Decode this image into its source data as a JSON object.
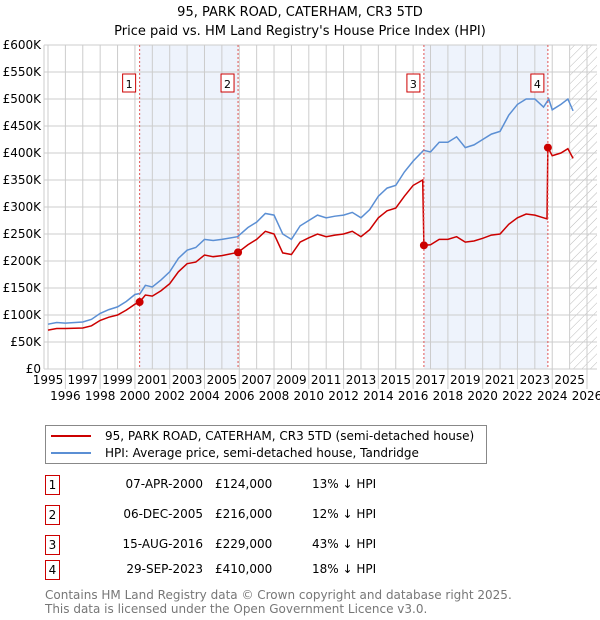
{
  "chart_data": {
    "type": "line",
    "title": "95, PARK ROAD, CATERHAM, CR3 5TD",
    "subtitle": "Price paid vs. HM Land Registry's House Price Index (HPI)",
    "xlim": [
      1995,
      2026
    ],
    "ylim": [
      0,
      600000
    ],
    "ytick_labels": [
      "£0",
      "£50K",
      "£100K",
      "£150K",
      "£200K",
      "£250K",
      "£300K",
      "£350K",
      "£400K",
      "£450K",
      "£500K",
      "£550K",
      "£600K"
    ],
    "xtick_labels": [
      "1995",
      "1996",
      "1997",
      "1998",
      "1999",
      "2000",
      "2001",
      "2002",
      "2003",
      "2004",
      "2005",
      "2006",
      "2007",
      "2008",
      "2009",
      "2010",
      "2011",
      "2012",
      "2013",
      "2014",
      "2015",
      "2016",
      "2017",
      "2018",
      "2019",
      "2020",
      "2021",
      "2022",
      "2023",
      "2024",
      "2025",
      "2026"
    ],
    "grid": true,
    "forecast_hatch_from": 2025.0,
    "series": [
      {
        "name": "95, PARK ROAD, CATERHAM, CR3 5TD (semi-detached house)",
        "color": "#cc0000",
        "points": [
          [
            1995,
            72
          ],
          [
            1995.5,
            75
          ],
          [
            1996,
            75
          ],
          [
            1997,
            76
          ],
          [
            1997.5,
            80
          ],
          [
            1998,
            90
          ],
          [
            1998.5,
            96
          ],
          [
            1999,
            100
          ],
          [
            1999.5,
            109
          ],
          [
            2000,
            120
          ],
          [
            2000.27,
            124
          ],
          [
            2000.6,
            137
          ],
          [
            2001,
            135
          ],
          [
            2001.5,
            145
          ],
          [
            2002,
            158
          ],
          [
            2002.5,
            180
          ],
          [
            2003,
            195
          ],
          [
            2003.5,
            198
          ],
          [
            2004,
            211
          ],
          [
            2004.5,
            208
          ],
          [
            2005,
            210
          ],
          [
            2005.93,
            216
          ],
          [
            2006.5,
            230
          ],
          [
            2007,
            240
          ],
          [
            2007.5,
            255
          ],
          [
            2008,
            250
          ],
          [
            2008.5,
            215
          ],
          [
            2009,
            212
          ],
          [
            2009.5,
            235
          ],
          [
            2010,
            243
          ],
          [
            2010.5,
            250
          ],
          [
            2011,
            245
          ],
          [
            2011.5,
            248
          ],
          [
            2012,
            250
          ],
          [
            2012.5,
            255
          ],
          [
            2013,
            245
          ],
          [
            2013.5,
            258
          ],
          [
            2014,
            280
          ],
          [
            2014.5,
            293
          ],
          [
            2015,
            298
          ],
          [
            2015.5,
            320
          ],
          [
            2016,
            340
          ],
          [
            2016.55,
            350
          ],
          [
            2016.62,
            229
          ],
          [
            2017,
            230
          ],
          [
            2017.5,
            240
          ],
          [
            2018,
            240
          ],
          [
            2018.5,
            245
          ],
          [
            2019,
            235
          ],
          [
            2019.5,
            237
          ],
          [
            2020,
            242
          ],
          [
            2020.5,
            248
          ],
          [
            2021,
            250
          ],
          [
            2021.5,
            268
          ],
          [
            2022,
            280
          ],
          [
            2022.5,
            287
          ],
          [
            2023,
            285
          ],
          [
            2023.5,
            280
          ],
          [
            2023.7,
            278
          ],
          [
            2023.75,
            410
          ],
          [
            2024,
            395
          ],
          [
            2024.5,
            400
          ],
          [
            2024.9,
            408
          ],
          [
            2025.2,
            390
          ]
        ]
      },
      {
        "name": "HPI: Average price, semi-detached house, Tandridge",
        "color": "#5b8fd4",
        "points": [
          [
            1995,
            83
          ],
          [
            1995.5,
            86
          ],
          [
            1996,
            85
          ],
          [
            1997,
            87
          ],
          [
            1997.5,
            92
          ],
          [
            1998,
            103
          ],
          [
            1998.5,
            110
          ],
          [
            1999,
            115
          ],
          [
            1999.5,
            125
          ],
          [
            2000,
            138
          ],
          [
            2000.3,
            140
          ],
          [
            2000.6,
            155
          ],
          [
            2001,
            152
          ],
          [
            2001.5,
            165
          ],
          [
            2002,
            180
          ],
          [
            2002.5,
            205
          ],
          [
            2003,
            220
          ],
          [
            2003.5,
            225
          ],
          [
            2004,
            240
          ],
          [
            2004.5,
            238
          ],
          [
            2005,
            240
          ],
          [
            2005.9,
            245
          ],
          [
            2006.5,
            262
          ],
          [
            2007,
            272
          ],
          [
            2007.5,
            288
          ],
          [
            2008,
            285
          ],
          [
            2008.5,
            250
          ],
          [
            2009,
            240
          ],
          [
            2009.5,
            265
          ],
          [
            2010,
            275
          ],
          [
            2010.5,
            285
          ],
          [
            2011,
            280
          ],
          [
            2011.5,
            283
          ],
          [
            2012,
            285
          ],
          [
            2012.5,
            290
          ],
          [
            2013,
            280
          ],
          [
            2013.5,
            295
          ],
          [
            2014,
            320
          ],
          [
            2014.5,
            335
          ],
          [
            2015,
            340
          ],
          [
            2015.5,
            365
          ],
          [
            2016,
            385
          ],
          [
            2016.6,
            405
          ],
          [
            2017,
            402
          ],
          [
            2017.5,
            420
          ],
          [
            2018,
            420
          ],
          [
            2018.5,
            430
          ],
          [
            2019,
            410
          ],
          [
            2019.5,
            415
          ],
          [
            2020,
            425
          ],
          [
            2020.5,
            435
          ],
          [
            2021,
            440
          ],
          [
            2021.5,
            470
          ],
          [
            2022,
            490
          ],
          [
            2022.5,
            500
          ],
          [
            2023,
            500
          ],
          [
            2023.5,
            485
          ],
          [
            2023.8,
            500
          ],
          [
            2024,
            480
          ],
          [
            2024.5,
            490
          ],
          [
            2024.9,
            500
          ],
          [
            2025.2,
            478
          ]
        ]
      }
    ],
    "sales": [
      {
        "label": "1",
        "x": 2000.27,
        "value": 124
      },
      {
        "label": "2",
        "x": 2005.93,
        "value": 216
      },
      {
        "label": "3",
        "x": 2016.62,
        "value": 229
      },
      {
        "label": "4",
        "x": 2023.75,
        "value": 410
      }
    ],
    "shaded_ranges": [
      [
        2000.27,
        2005.93
      ],
      [
        2016.62,
        2023.75
      ]
    ]
  },
  "legend": {
    "property": "95, PARK ROAD, CATERHAM, CR3 5TD (semi-detached house)",
    "hpi": "HPI: Average price, semi-detached house, Tandridge"
  },
  "table": [
    {
      "num": "1",
      "date": "07-APR-2000",
      "price": "£124,000",
      "hpi": "13% ↓ HPI"
    },
    {
      "num": "2",
      "date": "06-DEC-2005",
      "price": "£216,000",
      "hpi": "12% ↓ HPI"
    },
    {
      "num": "3",
      "date": "15-AUG-2016",
      "price": "£229,000",
      "hpi": "43% ↓ HPI"
    },
    {
      "num": "4",
      "date": "29-SEP-2023",
      "price": "£410,000",
      "hpi": "18% ↓ HPI"
    }
  ],
  "footer": {
    "line1": "Contains HM Land Registry data © Crown copyright and database right 2025.",
    "line2": "This data is licensed under the Open Government Licence v3.0."
  }
}
